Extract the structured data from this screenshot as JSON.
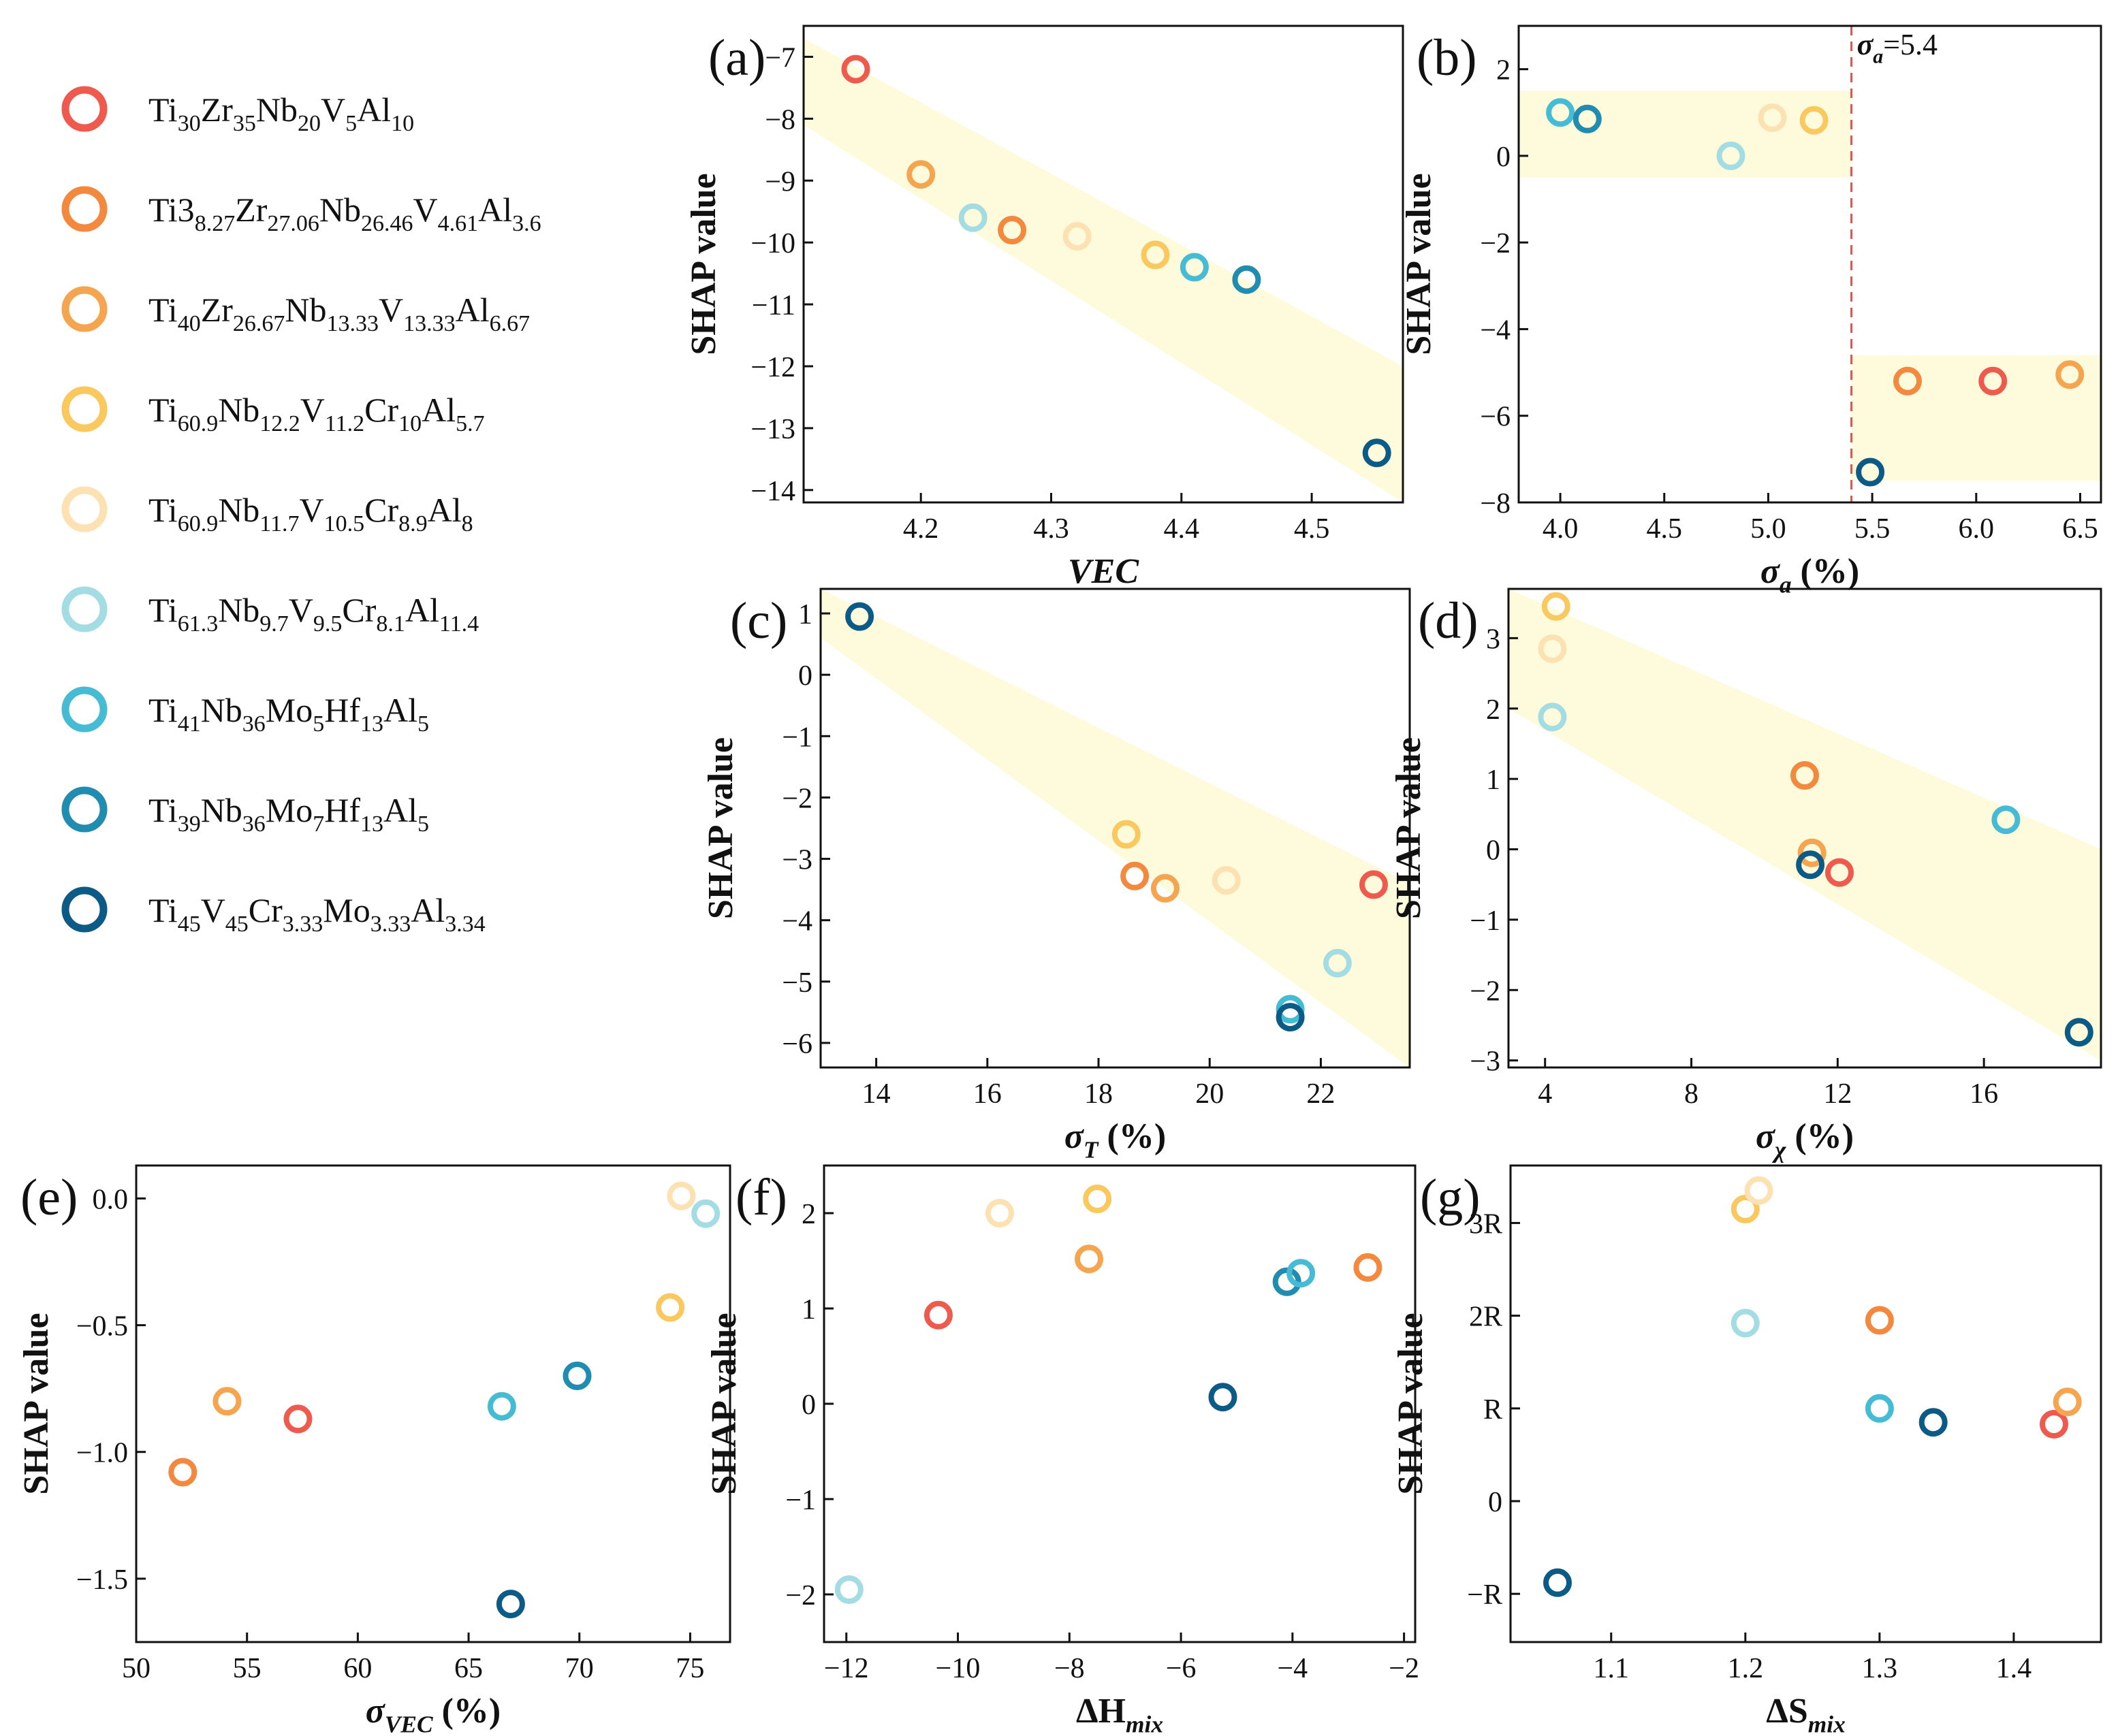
{
  "series": [
    {
      "key": "s1",
      "color": "#ef5a4e",
      "label": [
        [
          "Ti",
          ""
        ],
        [
          "30",
          "sub"
        ],
        [
          "Zr",
          ""
        ],
        [
          "35",
          "sub"
        ],
        [
          "Nb",
          ""
        ],
        [
          "20",
          "sub"
        ],
        [
          "V",
          ""
        ],
        [
          "5",
          "sub"
        ],
        [
          "Al",
          ""
        ],
        [
          "10",
          "sub"
        ]
      ]
    },
    {
      "key": "s2",
      "color": "#f2893f",
      "label": [
        [
          "Ti3",
          ""
        ],
        [
          "8.27",
          "sub"
        ],
        [
          "Zr",
          ""
        ],
        [
          "27.06",
          "sub"
        ],
        [
          "Nb",
          ""
        ],
        [
          "26.46",
          "sub"
        ],
        [
          "V",
          ""
        ],
        [
          "4.61",
          "sub"
        ],
        [
          "Al",
          ""
        ],
        [
          "3.6",
          "sub"
        ]
      ]
    },
    {
      "key": "s3",
      "color": "#f5a54f",
      "label": [
        [
          "Ti",
          ""
        ],
        [
          "40",
          "sub"
        ],
        [
          "Zr",
          ""
        ],
        [
          "26.67",
          "sub"
        ],
        [
          "Nb",
          ""
        ],
        [
          "13.33",
          "sub"
        ],
        [
          "V",
          ""
        ],
        [
          "13.33",
          "sub"
        ],
        [
          "Al",
          ""
        ],
        [
          "6.67",
          "sub"
        ]
      ]
    },
    {
      "key": "s4",
      "color": "#f9c85e",
      "label": [
        [
          "Ti",
          ""
        ],
        [
          "60.9",
          "sub"
        ],
        [
          "Nb",
          ""
        ],
        [
          "12.2",
          "sub"
        ],
        [
          "V",
          ""
        ],
        [
          "11.2",
          "sub"
        ],
        [
          "Cr",
          ""
        ],
        [
          "10",
          "sub"
        ],
        [
          "Al",
          ""
        ],
        [
          "5.7",
          "sub"
        ]
      ]
    },
    {
      "key": "s5",
      "color": "#fce1b2",
      "label": [
        [
          "Ti",
          ""
        ],
        [
          "60.9",
          "sub"
        ],
        [
          "Nb",
          ""
        ],
        [
          "11.7",
          "sub"
        ],
        [
          "V",
          ""
        ],
        [
          "10.5",
          "sub"
        ],
        [
          "Cr",
          ""
        ],
        [
          "8.9",
          "sub"
        ],
        [
          "Al",
          ""
        ],
        [
          "8",
          "sub"
        ]
      ]
    },
    {
      "key": "s6",
      "color": "#a3dde3",
      "label": [
        [
          "Ti",
          ""
        ],
        [
          "61.3",
          "sub"
        ],
        [
          "Nb",
          ""
        ],
        [
          "9.7",
          "sub"
        ],
        [
          "V",
          ""
        ],
        [
          "9.5",
          "sub"
        ],
        [
          "Cr",
          ""
        ],
        [
          "8.1",
          "sub"
        ],
        [
          "Al",
          ""
        ],
        [
          "11.4",
          "sub"
        ]
      ]
    },
    {
      "key": "s7",
      "color": "#46bcd4",
      "label": [
        [
          "Ti",
          ""
        ],
        [
          "41",
          "sub"
        ],
        [
          "Nb",
          ""
        ],
        [
          "36",
          "sub"
        ],
        [
          "Mo",
          ""
        ],
        [
          "5",
          "sub"
        ],
        [
          "Hf",
          ""
        ],
        [
          "13",
          "sub"
        ],
        [
          "Al",
          ""
        ],
        [
          "5",
          "sub"
        ]
      ]
    },
    {
      "key": "s8",
      "color": "#1f8cb0",
      "label": [
        [
          "Ti",
          ""
        ],
        [
          "39",
          "sub"
        ],
        [
          "Nb",
          ""
        ],
        [
          "36",
          "sub"
        ],
        [
          "Mo",
          ""
        ],
        [
          "7",
          "sub"
        ],
        [
          "Hf",
          ""
        ],
        [
          "13",
          "sub"
        ],
        [
          "Al",
          ""
        ],
        [
          "5",
          "sub"
        ]
      ]
    },
    {
      "key": "s9",
      "color": "#0b5b86",
      "label": [
        [
          "Ti",
          ""
        ],
        [
          "45",
          "sub"
        ],
        [
          "V",
          ""
        ],
        [
          "45",
          "sub"
        ],
        [
          "Cr",
          ""
        ],
        [
          "3.33",
          "sub"
        ],
        [
          "Mo",
          ""
        ],
        [
          "3.33",
          "sub"
        ],
        [
          "Al",
          ""
        ],
        [
          "3.34",
          "sub"
        ]
      ]
    }
  ],
  "chart_data": [
    {
      "panel": "(a)",
      "type": "scatter",
      "xlabel": [
        [
          "VEC",
          "bi"
        ]
      ],
      "ylabel": "SHAP value",
      "xlim": [
        4.11,
        4.57
      ],
      "ylim": [
        -14.2,
        -6.5
      ],
      "xticks": [
        4.2,
        4.3,
        4.4,
        4.5
      ],
      "xtick_labels": [
        "4.2",
        "4.3",
        "4.4",
        "4.5"
      ],
      "yticks": [
        -14,
        -13,
        -12,
        -11,
        -10,
        -9,
        -8,
        -7
      ],
      "ytick_labels": [
        "−14",
        "−13",
        "−12",
        "−11",
        "−10",
        "−9",
        "−8",
        "−7"
      ],
      "band": [
        [
          4.11,
          -6.7
        ],
        [
          4.11,
          -8.1
        ],
        [
          4.57,
          -14.2
        ],
        [
          4.57,
          -12.0
        ]
      ],
      "points": [
        {
          "s": "s1",
          "x": 4.15,
          "y": -7.2
        },
        {
          "s": "s3",
          "x": 4.2,
          "y": -8.9
        },
        {
          "s": "s6",
          "x": 4.24,
          "y": -9.6
        },
        {
          "s": "s2",
          "x": 4.27,
          "y": -9.8
        },
        {
          "s": "s5",
          "x": 4.32,
          "y": -9.9
        },
        {
          "s": "s4",
          "x": 4.38,
          "y": -10.2
        },
        {
          "s": "s7",
          "x": 4.41,
          "y": -10.4
        },
        {
          "s": "s8",
          "x": 4.45,
          "y": -10.6
        },
        {
          "s": "s9",
          "x": 4.55,
          "y": -13.4
        }
      ]
    },
    {
      "panel": "(b)",
      "type": "scatter",
      "xlabel": [
        [
          "σ",
          "bi"
        ],
        [
          "a",
          "sub-bi"
        ],
        [
          " (%)",
          "b"
        ]
      ],
      "ylabel": "SHAP value",
      "xlim": [
        3.8,
        6.6
      ],
      "ylim": [
        -8,
        3.0
      ],
      "xticks": [
        4.0,
        4.5,
        5.0,
        5.5,
        6.0,
        6.5
      ],
      "xtick_labels": [
        "4.0",
        "4.5",
        "5.0",
        "5.5",
        "6.0",
        "6.5"
      ],
      "yticks": [
        -8,
        -6,
        -4,
        -2,
        0,
        2
      ],
      "ytick_labels": [
        "−8",
        "−6",
        "−4",
        "−2",
        "0",
        "2"
      ],
      "band": [
        [
          3.8,
          1.5
        ],
        [
          5.4,
          1.5
        ],
        [
          5.4,
          -0.5
        ],
        [
          3.8,
          -0.5
        ]
      ],
      "band2": [
        [
          5.4,
          -4.6
        ],
        [
          6.6,
          -4.6
        ],
        [
          6.6,
          -7.5
        ],
        [
          5.4,
          -7.5
        ]
      ],
      "vline": 5.4,
      "vline_label": [
        [
          "σ",
          "bi"
        ],
        [
          "a",
          "sub-bi"
        ],
        [
          "=5.4",
          ""
        ]
      ],
      "points": [
        {
          "s": "s7",
          "x": 4.0,
          "y": 1.0
        },
        {
          "s": "s8",
          "x": 4.13,
          "y": 0.85
        },
        {
          "s": "s6",
          "x": 4.82,
          "y": 0.0
        },
        {
          "s": "s5",
          "x": 5.02,
          "y": 0.88
        },
        {
          "s": "s4",
          "x": 5.22,
          "y": 0.82
        },
        {
          "s": "s9",
          "x": 5.49,
          "y": -7.3
        },
        {
          "s": "s2",
          "x": 5.67,
          "y": -5.2
        },
        {
          "s": "s1",
          "x": 6.08,
          "y": -5.2
        },
        {
          "s": "s3",
          "x": 6.45,
          "y": -5.05
        }
      ]
    },
    {
      "panel": "(c)",
      "type": "scatter",
      "xlabel": [
        [
          "σ",
          "bi"
        ],
        [
          "T",
          "sub-bi"
        ],
        [
          " (%)",
          "b"
        ]
      ],
      "ylabel": "SHAP value",
      "xlim": [
        13.0,
        23.6
      ],
      "ylim": [
        -6.4,
        1.4
      ],
      "xticks": [
        14,
        16,
        18,
        20,
        22
      ],
      "xtick_labels": [
        "14",
        "16",
        "18",
        "20",
        "22"
      ],
      "yticks": [
        -6,
        -5,
        -4,
        -3,
        -2,
        -1,
        0,
        1
      ],
      "ytick_labels": [
        "−6",
        "−5",
        "−4",
        "−3",
        "−2",
        "−1",
        "0",
        "1"
      ],
      "band": [
        [
          13.0,
          1.4
        ],
        [
          13.0,
          0.6
        ],
        [
          23.6,
          -6.4
        ],
        [
          23.6,
          -3.4
        ]
      ],
      "points": [
        {
          "s": "s9",
          "x": 13.7,
          "y": 0.95
        },
        {
          "s": "s4",
          "x": 18.5,
          "y": -2.6
        },
        {
          "s": "s2",
          "x": 18.65,
          "y": -3.28
        },
        {
          "s": "s3",
          "x": 19.2,
          "y": -3.48
        },
        {
          "s": "s5",
          "x": 20.3,
          "y": -3.35
        },
        {
          "s": "s1",
          "x": 22.95,
          "y": -3.42
        },
        {
          "s": "s6",
          "x": 22.3,
          "y": -4.7
        },
        {
          "s": "s7",
          "x": 21.45,
          "y": -5.45
        },
        {
          "s": "s9",
          "x": 21.45,
          "y": -5.58
        }
      ]
    },
    {
      "panel": "(d)",
      "type": "scatter",
      "xlabel": [
        [
          "σ",
          "bi"
        ],
        [
          "χ",
          "sub-bi"
        ],
        [
          " (%)",
          "b"
        ]
      ],
      "ylabel": "SHAP value",
      "xlim": [
        3.0,
        19.2
      ],
      "ylim": [
        -3.1,
        3.7
      ],
      "xticks": [
        4,
        8,
        12,
        16
      ],
      "xtick_labels": [
        "4",
        "8",
        "12",
        "16"
      ],
      "yticks": [
        -3,
        -2,
        -1,
        0,
        1,
        2,
        3
      ],
      "ytick_labels": [
        "−3",
        "−2",
        "−1",
        "0",
        "1",
        "2",
        "3"
      ],
      "band": [
        [
          3.0,
          3.7
        ],
        [
          3.0,
          2.0
        ],
        [
          19.2,
          -3.0
        ],
        [
          19.2,
          0.0
        ]
      ],
      "points": [
        {
          "s": "s4",
          "x": 4.3,
          "y": 3.45
        },
        {
          "s": "s5",
          "x": 4.2,
          "y": 2.85
        },
        {
          "s": "s6",
          "x": 4.2,
          "y": 1.88
        },
        {
          "s": "s2",
          "x": 11.1,
          "y": 1.05
        },
        {
          "s": "s3",
          "x": 11.3,
          "y": -0.05
        },
        {
          "s": "s9",
          "x": 11.25,
          "y": -0.22
        },
        {
          "s": "s1",
          "x": 12.05,
          "y": -0.33
        },
        {
          "s": "s7",
          "x": 16.6,
          "y": 0.42
        },
        {
          "s": "s9",
          "x": 18.6,
          "y": -2.6
        }
      ]
    },
    {
      "panel": "(e)",
      "type": "scatter",
      "xlabel": [
        [
          "σ",
          "bi"
        ],
        [
          "VEC",
          "sub-bi"
        ],
        [
          " (%)",
          "b"
        ]
      ],
      "ylabel": "SHAP value",
      "xlim": [
        50.0,
        76.8
      ],
      "ylim": [
        -1.75,
        0.13
      ],
      "xticks": [
        50,
        55,
        60,
        65,
        70,
        75
      ],
      "xtick_labels": [
        "50",
        "55",
        "60",
        "65",
        "70",
        "75"
      ],
      "yticks": [
        -1.5,
        -1.0,
        -0.5,
        0.0
      ],
      "ytick_labels": [
        "−1.5",
        "−1.0",
        "−0.5",
        "0.0"
      ],
      "points": [
        {
          "s": "s2",
          "x": 52.1,
          "y": -1.08
        },
        {
          "s": "s3",
          "x": 54.1,
          "y": -0.8
        },
        {
          "s": "s1",
          "x": 57.3,
          "y": -0.87
        },
        {
          "s": "s7",
          "x": 66.5,
          "y": -0.82
        },
        {
          "s": "s9",
          "x": 66.9,
          "y": -1.6
        },
        {
          "s": "s8",
          "x": 69.9,
          "y": -0.7
        },
        {
          "s": "s4",
          "x": 74.1,
          "y": -0.43
        },
        {
          "s": "s5",
          "x": 74.6,
          "y": 0.01
        },
        {
          "s": "s6",
          "x": 75.7,
          "y": -0.06
        }
      ]
    },
    {
      "panel": "(f)",
      "type": "scatter",
      "xlabel": [
        [
          "ΔH",
          "b"
        ],
        [
          "mix",
          "sub-bi"
        ]
      ],
      "ylabel": "SHAP value",
      "xlim": [
        -12.4,
        -1.8
      ],
      "ylim": [
        -2.5,
        2.5
      ],
      "xticks": [
        -12,
        -10,
        -8,
        -6,
        -4,
        -2
      ],
      "xtick_labels": [
        "−12",
        "−10",
        "−8",
        "−6",
        "−4",
        "−2"
      ],
      "yticks": [
        -2,
        -1,
        0,
        1,
        2
      ],
      "ytick_labels": [
        "−2",
        "−1",
        "0",
        "1",
        "2"
      ],
      "points": [
        {
          "s": "s6",
          "x": -11.95,
          "y": -1.95
        },
        {
          "s": "s1",
          "x": -10.35,
          "y": 0.93
        },
        {
          "s": "s5",
          "x": -9.25,
          "y": 2.0
        },
        {
          "s": "s3",
          "x": -7.65,
          "y": 1.52
        },
        {
          "s": "s4",
          "x": -7.5,
          "y": 2.15
        },
        {
          "s": "s9",
          "x": -5.25,
          "y": 0.07
        },
        {
          "s": "s8",
          "x": -4.1,
          "y": 1.28
        },
        {
          "s": "s7",
          "x": -3.85,
          "y": 1.37
        },
        {
          "s": "s2",
          "x": -2.65,
          "y": 1.43
        }
      ]
    },
    {
      "panel": "(g)",
      "type": "scatter",
      "xlabel": [
        [
          "ΔS",
          "b"
        ],
        [
          "mix",
          "sub-bi"
        ]
      ],
      "ylabel": "SHAP value",
      "xlim": [
        1.025,
        1.465
      ],
      "ylim": [
        -1.52,
        3.62
      ],
      "xticks": [
        1.1,
        1.2,
        1.3,
        1.4
      ],
      "xtick_labels": [
        "1.1",
        "1.2",
        "1.3",
        "1.4"
      ],
      "yticks": [
        -1,
        0,
        1,
        2,
        3
      ],
      "ytick_labels": [
        "−R",
        "0",
        "R",
        "2R",
        "3R"
      ],
      "points": [
        {
          "s": "s9",
          "x": 1.06,
          "y": -0.88
        },
        {
          "s": "s4",
          "x": 1.2,
          "y": 3.15
        },
        {
          "s": "s5",
          "x": 1.21,
          "y": 3.35
        },
        {
          "s": "s6",
          "x": 1.2,
          "y": 1.92
        },
        {
          "s": "s2",
          "x": 1.3,
          "y": 1.95
        },
        {
          "s": "s7",
          "x": 1.3,
          "y": 1.0
        },
        {
          "s": "s9",
          "x": 1.34,
          "y": 0.85
        },
        {
          "s": "s1",
          "x": 1.43,
          "y": 0.83
        },
        {
          "s": "s3",
          "x": 1.44,
          "y": 1.07
        }
      ]
    }
  ]
}
